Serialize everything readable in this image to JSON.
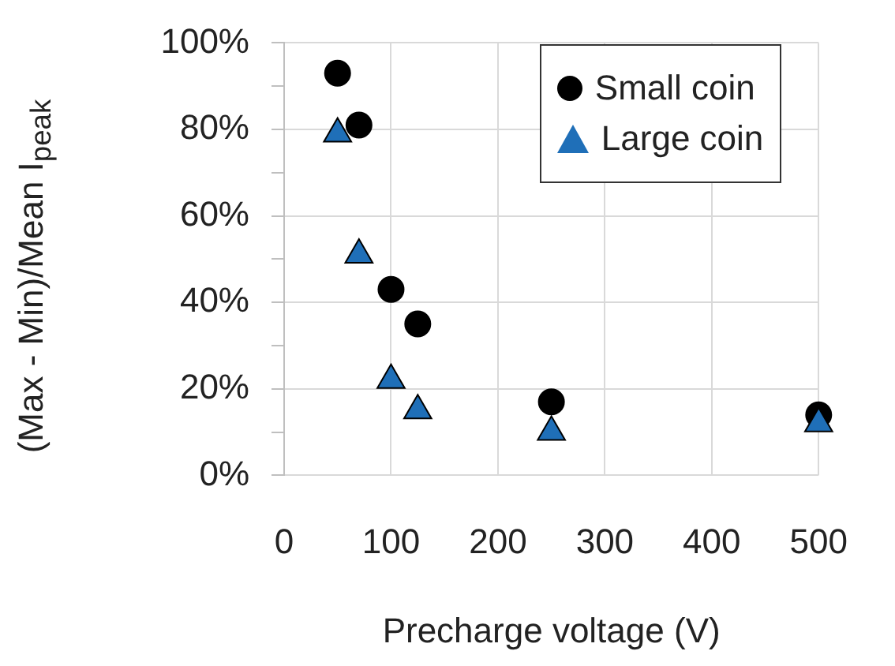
{
  "chart_data": {
    "type": "scatter",
    "xlabel": "Precharge voltage (V)",
    "ylabel": "(Max - Min)/Mean I$_{peak}$",
    "xlim": [
      0,
      500
    ],
    "xticks": [
      0,
      100,
      200,
      300,
      400,
      500
    ],
    "ylim": [
      0,
      100
    ],
    "yticks": [
      {
        "value": 0,
        "label": "0%"
      },
      {
        "value": 10,
        "label": null
      },
      {
        "value": 20,
        "label": "20%"
      },
      {
        "value": 30,
        "label": null
      },
      {
        "value": 40,
        "label": "40%"
      },
      {
        "value": 50,
        "label": null
      },
      {
        "value": 60,
        "label": "60%"
      },
      {
        "value": 70,
        "label": null
      },
      {
        "value": 80,
        "label": "80%"
      },
      {
        "value": 90,
        "label": null
      },
      {
        "value": 100,
        "label": "100%"
      }
    ],
    "grid": true,
    "legend": "top right",
    "series": [
      {
        "name": "Small coin",
        "color": "#000000",
        "marker": "circle",
        "x": [
          50,
          70,
          100,
          125,
          250,
          500
        ],
        "values": [
          93,
          81,
          43,
          35,
          17,
          14
        ]
      },
      {
        "name": "Large coin",
        "color": "#1f6fb8",
        "marker": "triangle",
        "x": [
          50,
          70,
          100,
          125,
          250,
          500
        ],
        "values": [
          79,
          51,
          22,
          15,
          10,
          12
        ]
      }
    ]
  }
}
